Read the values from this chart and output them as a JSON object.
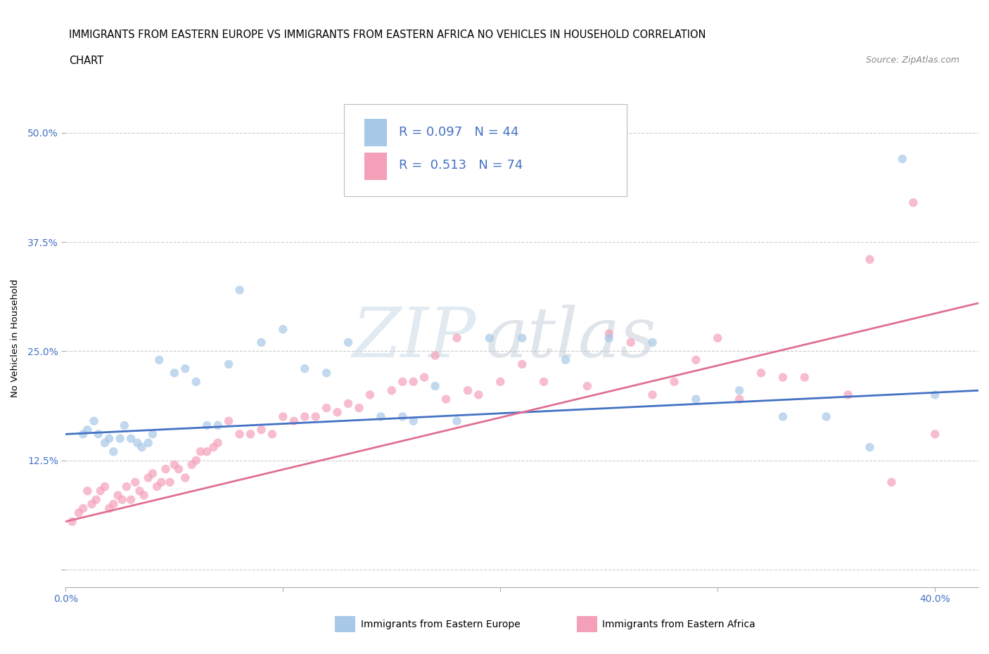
{
  "title_line1": "IMMIGRANTS FROM EASTERN EUROPE VS IMMIGRANTS FROM EASTERN AFRICA NO VEHICLES IN HOUSEHOLD CORRELATION",
  "title_line2": "CHART",
  "source": "Source: ZipAtlas.com",
  "ylabel": "No Vehicles in Household",
  "xlim": [
    0.0,
    0.42
  ],
  "ylim": [
    -0.02,
    0.55
  ],
  "color_blue": "#a8c8e8",
  "color_pink": "#f4a0b8",
  "line_color_blue": "#4472c4",
  "line_color_pink": "#e07090",
  "watermark": "ZIP atlas",
  "blue_x": [
    0.008,
    0.01,
    0.013,
    0.015,
    0.018,
    0.02,
    0.022,
    0.025,
    0.027,
    0.03,
    0.033,
    0.035,
    0.038,
    0.04,
    0.043,
    0.05,
    0.055,
    0.06,
    0.065,
    0.07,
    0.075,
    0.08,
    0.09,
    0.1,
    0.11,
    0.12,
    0.13,
    0.145,
    0.155,
    0.16,
    0.17,
    0.18,
    0.195,
    0.21,
    0.23,
    0.25,
    0.27,
    0.29,
    0.31,
    0.33,
    0.35,
    0.37,
    0.385,
    0.4
  ],
  "blue_y": [
    0.155,
    0.16,
    0.17,
    0.155,
    0.145,
    0.15,
    0.135,
    0.15,
    0.165,
    0.15,
    0.145,
    0.14,
    0.145,
    0.155,
    0.24,
    0.225,
    0.23,
    0.215,
    0.165,
    0.165,
    0.235,
    0.32,
    0.26,
    0.275,
    0.23,
    0.225,
    0.26,
    0.175,
    0.175,
    0.17,
    0.21,
    0.17,
    0.265,
    0.265,
    0.24,
    0.265,
    0.26,
    0.195,
    0.205,
    0.175,
    0.175,
    0.14,
    0.47,
    0.2
  ],
  "pink_x": [
    0.003,
    0.006,
    0.008,
    0.01,
    0.012,
    0.014,
    0.016,
    0.018,
    0.02,
    0.022,
    0.024,
    0.026,
    0.028,
    0.03,
    0.032,
    0.034,
    0.036,
    0.038,
    0.04,
    0.042,
    0.044,
    0.046,
    0.048,
    0.05,
    0.052,
    0.055,
    0.058,
    0.06,
    0.062,
    0.065,
    0.068,
    0.07,
    0.075,
    0.08,
    0.085,
    0.09,
    0.095,
    0.1,
    0.105,
    0.11,
    0.115,
    0.12,
    0.125,
    0.13,
    0.135,
    0.14,
    0.15,
    0.155,
    0.16,
    0.165,
    0.17,
    0.175,
    0.18,
    0.185,
    0.19,
    0.2,
    0.21,
    0.22,
    0.24,
    0.25,
    0.26,
    0.27,
    0.28,
    0.29,
    0.3,
    0.31,
    0.32,
    0.33,
    0.34,
    0.36,
    0.37,
    0.38,
    0.39,
    0.4
  ],
  "pink_y": [
    0.055,
    0.065,
    0.07,
    0.09,
    0.075,
    0.08,
    0.09,
    0.095,
    0.07,
    0.075,
    0.085,
    0.08,
    0.095,
    0.08,
    0.1,
    0.09,
    0.085,
    0.105,
    0.11,
    0.095,
    0.1,
    0.115,
    0.1,
    0.12,
    0.115,
    0.105,
    0.12,
    0.125,
    0.135,
    0.135,
    0.14,
    0.145,
    0.17,
    0.155,
    0.155,
    0.16,
    0.155,
    0.175,
    0.17,
    0.175,
    0.175,
    0.185,
    0.18,
    0.19,
    0.185,
    0.2,
    0.205,
    0.215,
    0.215,
    0.22,
    0.245,
    0.195,
    0.265,
    0.205,
    0.2,
    0.215,
    0.235,
    0.215,
    0.21,
    0.27,
    0.26,
    0.2,
    0.215,
    0.24,
    0.265,
    0.195,
    0.225,
    0.22,
    0.22,
    0.2,
    0.355,
    0.1,
    0.42,
    0.155
  ],
  "blue_trend_x": [
    0.0,
    0.42
  ],
  "blue_trend_y": [
    0.155,
    0.205
  ],
  "pink_trend_x": [
    0.0,
    0.42
  ],
  "pink_trend_y": [
    0.055,
    0.305
  ],
  "grid_color": "#cccccc",
  "background_color": "#ffffff",
  "title_fontsize": 10.5,
  "source_fontsize": 9,
  "axis_label_fontsize": 9.5,
  "tick_fontsize": 10,
  "legend_fontsize": 14,
  "scatter_alpha": 0.7,
  "scatter_size": 80
}
